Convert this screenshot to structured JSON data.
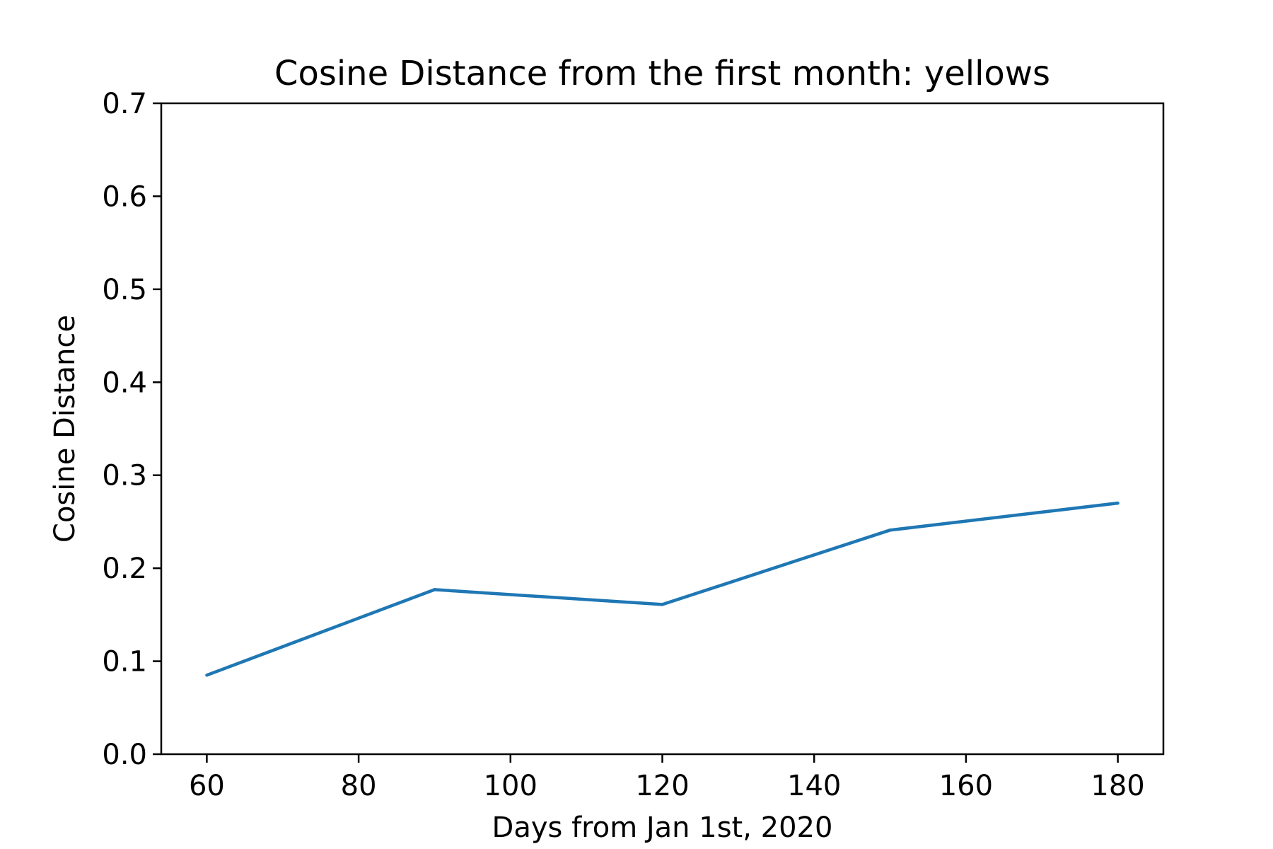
{
  "chart_data": {
    "type": "line",
    "title": "Cosine Distance from the first month: yellows",
    "xlabel": "Days from Jan 1st, 2020",
    "ylabel": "Cosine Distance",
    "xlim": [
      54,
      186
    ],
    "ylim": [
      0.0,
      0.7
    ],
    "x_ticks": [
      60,
      80,
      100,
      120,
      140,
      160,
      180
    ],
    "x_tick_labels": [
      "60",
      "80",
      "100",
      "120",
      "140",
      "160",
      "180"
    ],
    "y_ticks": [
      0.0,
      0.1,
      0.2,
      0.3,
      0.4,
      0.5,
      0.6,
      0.7
    ],
    "y_tick_labels": [
      "0.0",
      "0.1",
      "0.2",
      "0.3",
      "0.4",
      "0.5",
      "0.6",
      "0.7"
    ],
    "grid": false,
    "series": [
      {
        "color": "#1f77b4",
        "x": [
          60,
          90,
          120,
          150,
          180
        ],
        "y": [
          0.085,
          0.177,
          0.161,
          0.241,
          0.27
        ]
      }
    ]
  }
}
